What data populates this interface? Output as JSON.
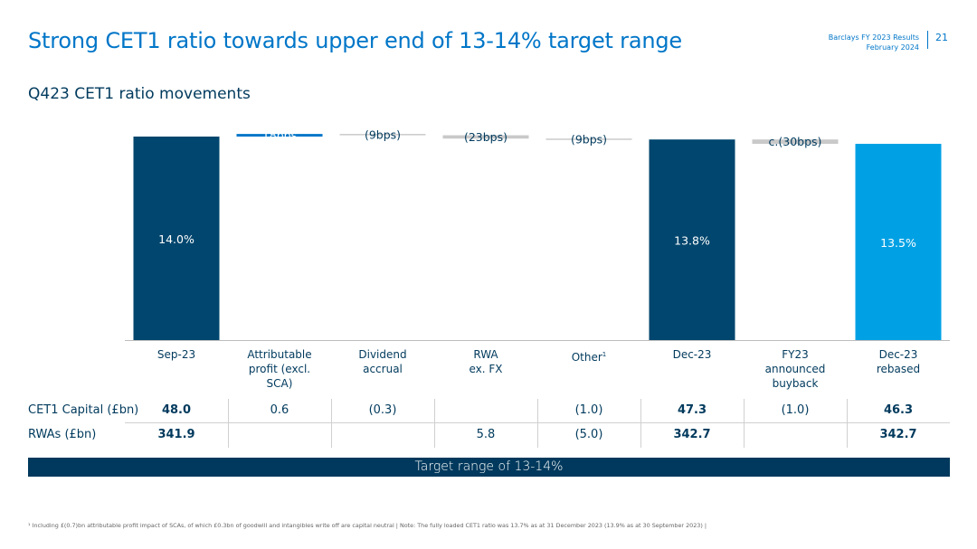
{
  "header": {
    "title": "Strong CET1 ratio towards upper end of 13-14% target range",
    "source_line1": "Barclays FY 2023 Results",
    "source_line2": "February 2024",
    "page_number": "21"
  },
  "subtitle": "Q423 CET1 ratio movements",
  "colors": {
    "dark_navy": "#00466e",
    "brand_blue": "#0076c8",
    "light_blue": "#00a1e4",
    "grey_bar": "#c9c9c9",
    "title_blue": "#0076c8"
  },
  "chart_data": {
    "type": "bar",
    "subtype": "waterfall",
    "categories": [
      "Sep-23",
      "Attributable profit (excl. SCA)",
      "Dividend accrual",
      "RWA ex. FX",
      "Other",
      "Dec-23",
      "FY23 announced buyback",
      "Dec-23 rebased"
    ],
    "category_lines": [
      [
        "Sep-23"
      ],
      [
        "Attributable",
        "profit (excl.",
        "SCA)"
      ],
      [
        "Dividend",
        "accrual"
      ],
      [
        "RWA",
        "ex. FX"
      ],
      [
        "Other"
      ],
      [
        "Dec-23"
      ],
      [
        "FY23",
        "announced",
        "buyback"
      ],
      [
        "Dec-23",
        "rebased"
      ]
    ],
    "category_footnote_marks": [
      "",
      "",
      "",
      "",
      "1",
      "",
      "",
      ""
    ],
    "values_pct": [
      14.0,
      0.18,
      -0.09,
      -0.23,
      -0.09,
      13.8,
      -0.3,
      13.5
    ],
    "bar_kind": [
      "total",
      "increase",
      "decrease",
      "decrease",
      "decrease",
      "total",
      "decrease",
      "total"
    ],
    "labels": [
      "14.0%",
      "18bps",
      "(9bps)",
      "(23bps)",
      "(9bps)",
      "13.8%",
      "c.(30bps)",
      "13.5%"
    ],
    "ylabel": "",
    "ylim": [
      0,
      14.4
    ]
  },
  "table": {
    "rows": [
      {
        "label": "CET1 Capital (£bn)",
        "cells": [
          "48.0",
          "0.6",
          "(0.3)",
          "",
          "(1.0)",
          "47.3",
          "(1.0)",
          "46.3"
        ]
      },
      {
        "label": "RWAs (£bn)",
        "cells": [
          "341.9",
          "",
          "",
          "5.8",
          "(5.0)",
          "342.7",
          "",
          "342.7"
        ]
      }
    ],
    "bold_columns": [
      0,
      5,
      7
    ]
  },
  "target_range": "Target range of 13-14%",
  "footnote": "¹ Including £(0.7)bn attributable profit impact of SCAs, of which £0.3bn of goodwill and intangibles write off are capital neutral | Note: The fully loaded CET1 ratio was 13.7% as at 31 December 2023 (13.9% as at 30 September 2023) |"
}
